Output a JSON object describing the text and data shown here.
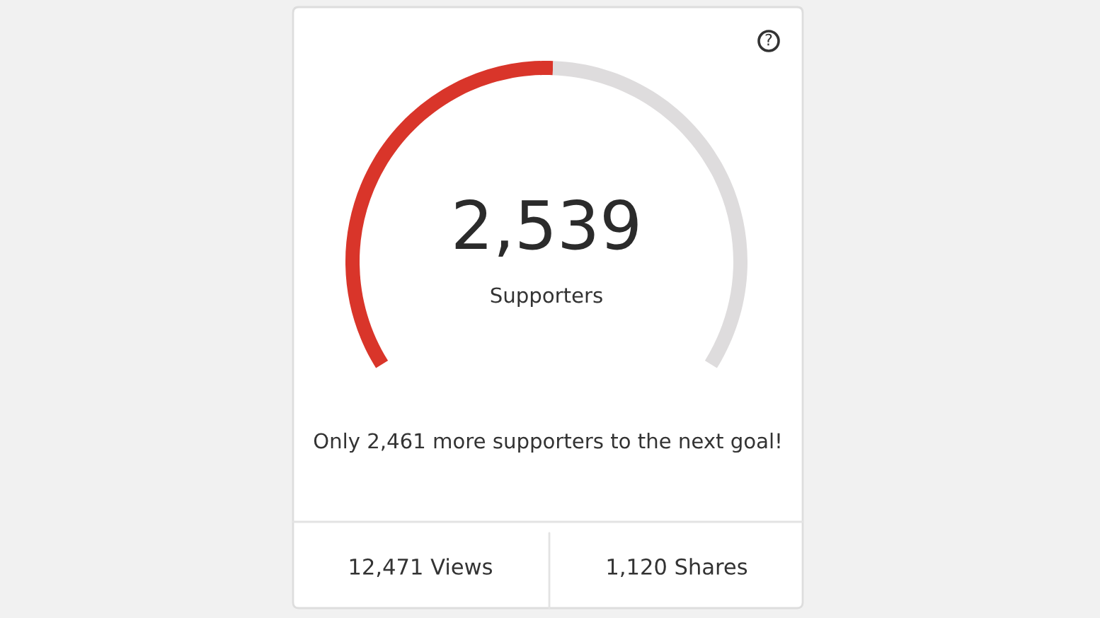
{
  "chart_data": {
    "type": "donut",
    "categories": [
      null,
      null
    ],
    "values": [
      2539,
      2461
    ],
    "colors": [
      "#d9352a",
      "#dedcdd"
    ],
    "value_labels": [
      "2,539",
      null
    ],
    "annotations": [
      "Supporters",
      "Only 2,461 more supporters to the next goal!",
      "12,471 Views",
      "1,120 Shares",
      "?"
    ]
  }
}
